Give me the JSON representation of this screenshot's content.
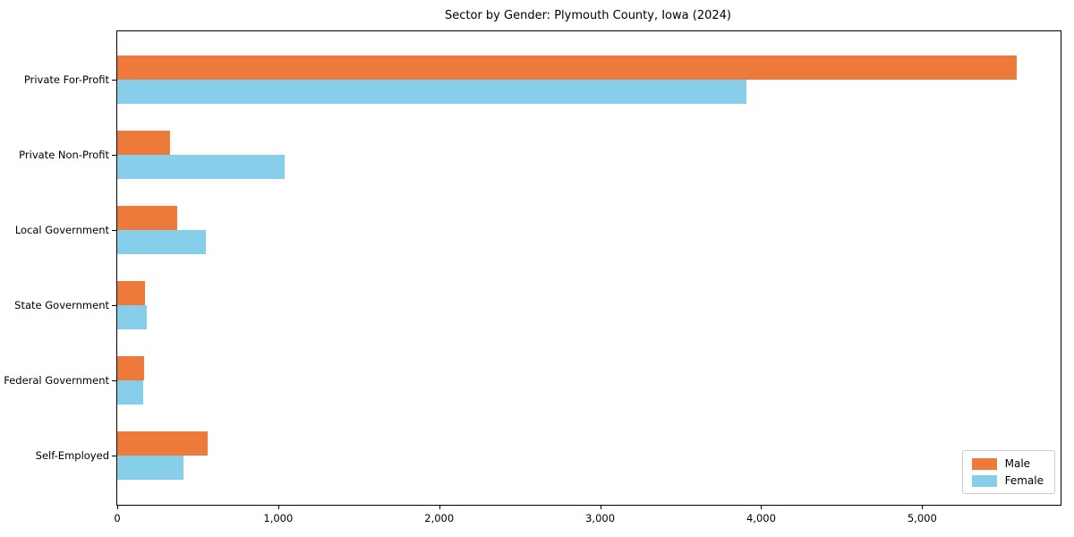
{
  "title": "Sector by Gender: Plymouth County, Iowa (2024)",
  "colors": {
    "male": "#ED7A3B",
    "female": "#87CEEB",
    "frame": "#000000",
    "legend_border": "#cccccc"
  },
  "legend": {
    "position": "lower right",
    "items": [
      {
        "label": "Male",
        "color_key": "male"
      },
      {
        "label": "Female",
        "color_key": "female"
      }
    ]
  },
  "chart_data": {
    "type": "bar",
    "orientation": "horizontal",
    "title": "Sector by Gender: Plymouth County, Iowa (2024)",
    "xlabel": "",
    "ylabel": "",
    "categories": [
      "Private For-Profit",
      "Private Non-Profit",
      "Local Government",
      "State Government",
      "Federal Government",
      "Self-Employed"
    ],
    "series": [
      {
        "name": "Male",
        "values": [
          5590,
          330,
          370,
          170,
          165,
          560
        ]
      },
      {
        "name": "Female",
        "values": [
          3910,
          1040,
          550,
          185,
          160,
          410
        ]
      }
    ],
    "xlim": [
      0,
      5860
    ],
    "x_ticks": [
      0,
      1000,
      2000,
      3000,
      4000,
      5000
    ],
    "x_tick_labels": [
      "0",
      "1,000",
      "2,000",
      "3,000",
      "4,000",
      "5,000"
    ],
    "grid": false,
    "legend_position": "lower right"
  }
}
